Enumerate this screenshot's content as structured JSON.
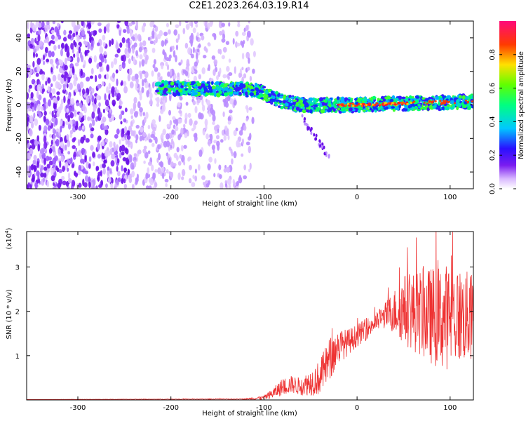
{
  "title": "C2E1.2023.264.03.19.R14",
  "chart_data": [
    {
      "type": "heatmap",
      "xlabel": "Height of straight line (km)",
      "ylabel": "Frequency (Hz)",
      "xlim": [
        -355,
        125
      ],
      "ylim": [
        -50,
        50
      ],
      "xticks": [
        "-300",
        "-200",
        "-100",
        "0",
        "100"
      ],
      "yticks": [
        "-40",
        "-20",
        "0",
        "20",
        "40"
      ],
      "colorbar": {
        "label": "Normalized spectral amplitude",
        "range": [
          0,
          1
        ],
        "ticks": [
          "0.0",
          "0.2",
          "0.4",
          "0.6",
          "0.8"
        ]
      },
      "features": {
        "noise_region_x": [
          -355,
          -110
        ],
        "signal_band_center_hz": [
          [
            -215,
            10
          ],
          [
            -110,
            9
          ],
          [
            -80,
            2
          ],
          [
            -60,
            0
          ],
          [
            0,
            0
          ],
          [
            125,
            2
          ]
        ],
        "peak_amplitude_x": [
          -20,
          60
        ]
      }
    },
    {
      "type": "line",
      "xlabel": "Height of straight line (km)",
      "ylabel": "SNR (10 * v/v)",
      "multiplier": "(x10",
      "multiplier_exp": "4",
      "multiplier_close": ")",
      "xlim": [
        -355,
        125
      ],
      "ylim": [
        0,
        3.8
      ],
      "xticks": [
        "-300",
        "-200",
        "-100",
        "0",
        "100"
      ],
      "yticks": [
        "1",
        "2",
        "3"
      ],
      "color": "#ee3333",
      "envelope": {
        "x": [
          -355,
          -120,
          -100,
          -90,
          -80,
          -70,
          -60,
          -50,
          -40,
          -30,
          -20,
          -10,
          0,
          10,
          20,
          30,
          40,
          50,
          60,
          70,
          80,
          90,
          100,
          110,
          125
        ],
        "mean": [
          0.01,
          0.02,
          0.05,
          0.15,
          0.3,
          0.35,
          0.3,
          0.4,
          0.5,
          0.9,
          1.2,
          1.3,
          1.45,
          1.6,
          1.75,
          1.9,
          2.0,
          2.05,
          2.0,
          1.95,
          1.9,
          1.85,
          1.9,
          1.9,
          1.85
        ],
        "spread": [
          0.0,
          0.01,
          0.05,
          0.12,
          0.2,
          0.2,
          0.2,
          0.3,
          0.4,
          0.5,
          0.4,
          0.3,
          0.25,
          0.25,
          0.2,
          0.3,
          0.5,
          0.8,
          0.9,
          1.0,
          1.1,
          1.2,
          1.2,
          1.1,
          1.0
        ]
      }
    }
  ]
}
